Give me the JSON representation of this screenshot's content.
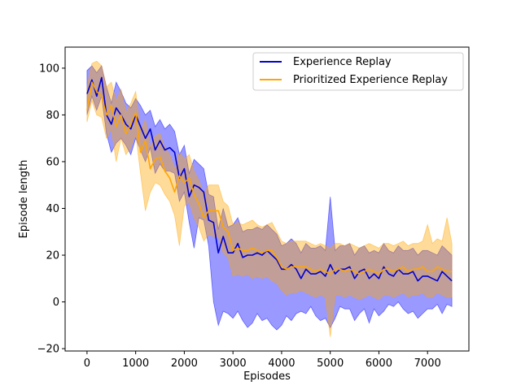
{
  "chart_data": {
    "type": "line",
    "xlabel": "Episodes",
    "ylabel": "Episode length",
    "xlim": [
      -450,
      7850
    ],
    "ylim": [
      -21,
      109
    ],
    "xticks": [
      0,
      1000,
      2000,
      3000,
      4000,
      5000,
      6000,
      7000
    ],
    "yticks": [
      -20,
      0,
      20,
      40,
      60,
      80,
      100
    ],
    "legend_position": "top-right",
    "grid": false,
    "x": [
      0,
      100,
      200,
      300,
      400,
      500,
      600,
      700,
      800,
      900,
      1000,
      1100,
      1200,
      1300,
      1400,
      1500,
      1600,
      1700,
      1800,
      1900,
      2000,
      2100,
      2200,
      2300,
      2400,
      2500,
      2600,
      2700,
      2800,
      2900,
      3000,
      3100,
      3200,
      3300,
      3400,
      3500,
      3600,
      3700,
      3800,
      3900,
      4000,
      4100,
      4200,
      4300,
      4400,
      4500,
      4600,
      4700,
      4800,
      4900,
      5000,
      5100,
      5200,
      5300,
      5400,
      5500,
      5600,
      5700,
      5800,
      5900,
      6000,
      6100,
      6200,
      6300,
      6400,
      6500,
      6600,
      6700,
      6800,
      6900,
      7000,
      7100,
      7200,
      7300,
      7400,
      7500
    ],
    "series": [
      {
        "name": "Experience Replay",
        "color": "#0000cc",
        "band_color": "#0000ff",
        "mean": [
          89,
          95,
          88,
          96,
          80,
          76,
          83,
          80,
          76,
          74,
          80,
          75,
          70,
          74,
          65,
          69,
          65,
          66,
          64,
          53,
          57,
          45,
          50,
          49,
          47,
          35,
          34,
          21,
          28,
          21,
          21,
          25,
          19,
          20,
          20,
          21,
          20,
          22,
          20,
          18,
          14,
          14,
          16,
          14,
          10,
          14,
          12,
          12,
          13,
          11,
          16,
          12,
          14,
          14,
          15,
          10,
          13,
          14,
          10,
          12,
          10,
          15,
          12,
          11,
          14,
          12,
          12,
          13,
          9,
          11,
          11,
          10,
          9,
          13,
          11,
          9
        ],
        "upper": [
          99,
          101,
          98,
          101,
          92,
          85,
          94,
          90,
          85,
          83,
          87,
          84,
          80,
          82,
          75,
          78,
          74,
          76,
          73,
          63,
          67,
          55,
          61,
          59,
          57,
          46,
          45,
          31,
          40,
          32,
          33,
          36,
          30,
          31,
          31,
          32,
          31,
          33,
          31,
          29,
          24,
          25,
          27,
          25,
          21,
          25,
          23,
          23,
          24,
          22,
          45,
          22,
          24,
          24,
          25,
          20,
          23,
          24,
          21,
          22,
          21,
          25,
          22,
          21,
          24,
          22,
          22,
          23,
          20,
          22,
          22,
          21,
          20,
          24,
          22,
          20
        ],
        "lower": [
          80,
          88,
          82,
          88,
          72,
          64,
          68,
          70,
          67,
          63,
          70,
          65,
          60,
          66,
          55,
          59,
          56,
          56,
          55,
          43,
          47,
          34,
          23,
          36,
          35,
          24,
          0,
          -10,
          -4,
          -5,
          -7,
          -4,
          -8,
          -11,
          -9,
          -5,
          -8,
          -7,
          -10,
          -12,
          -10,
          -6,
          -8,
          -5,
          -4,
          -5,
          -2,
          -6,
          -8,
          -7,
          -11,
          -7,
          -2,
          -3,
          -3,
          -8,
          -5,
          -3,
          -9,
          -3,
          -6,
          -4,
          -1,
          -2,
          0,
          -3,
          -5,
          -4,
          -7,
          -5,
          -3,
          -3,
          -1,
          -5,
          -1,
          -2
        ]
      },
      {
        "name": "Prioritized Experience Replay",
        "color": "#ffa500",
        "band_color": "#ffa500",
        "mean": [
          82,
          94,
          90,
          88,
          80,
          84,
          75,
          80,
          72,
          76,
          81,
          64,
          69,
          57,
          61,
          62,
          56,
          53,
          47,
          54,
          51,
          53,
          46,
          42,
          36,
          39,
          39,
          39,
          32,
          30,
          22,
          23,
          22,
          22,
          23,
          22,
          21,
          22,
          22,
          19,
          15,
          14,
          15,
          15,
          15,
          15,
          14,
          13,
          14,
          13,
          12,
          14,
          14,
          13,
          14,
          13,
          12,
          13,
          14,
          13,
          12,
          14,
          14,
          13,
          14,
          15,
          13,
          14,
          14,
          15,
          13,
          13,
          15,
          14,
          13,
          13
        ],
        "upper": [
          92,
          102,
          103,
          101,
          92,
          94,
          86,
          91,
          81,
          85,
          90,
          73,
          78,
          66,
          71,
          72,
          66,
          63,
          57,
          64,
          61,
          63,
          56,
          52,
          46,
          50,
          50,
          50,
          43,
          41,
          33,
          34,
          33,
          34,
          35,
          33,
          32,
          33,
          34,
          30,
          26,
          25,
          26,
          26,
          26,
          26,
          25,
          24,
          25,
          24,
          23,
          25,
          25,
          24,
          25,
          24,
          23,
          24,
          25,
          24,
          23,
          25,
          25,
          24,
          25,
          26,
          24,
          25,
          25,
          26,
          33,
          25,
          27,
          26,
          36,
          25
        ],
        "lower": [
          77,
          86,
          80,
          79,
          70,
          74,
          60,
          70,
          63,
          66,
          72,
          55,
          39,
          47,
          51,
          50,
          46,
          43,
          37,
          24,
          41,
          43,
          36,
          32,
          26,
          29,
          28,
          28,
          21,
          19,
          11,
          12,
          11,
          12,
          10,
          11,
          10,
          11,
          9,
          8,
          5,
          3,
          4,
          4,
          5,
          4,
          3,
          2,
          3,
          2,
          -15,
          3,
          3,
          2,
          3,
          2,
          1,
          2,
          3,
          2,
          1,
          3,
          3,
          2,
          3,
          4,
          2,
          3,
          3,
          4,
          2,
          2,
          4,
          3,
          2,
          2
        ]
      }
    ]
  }
}
